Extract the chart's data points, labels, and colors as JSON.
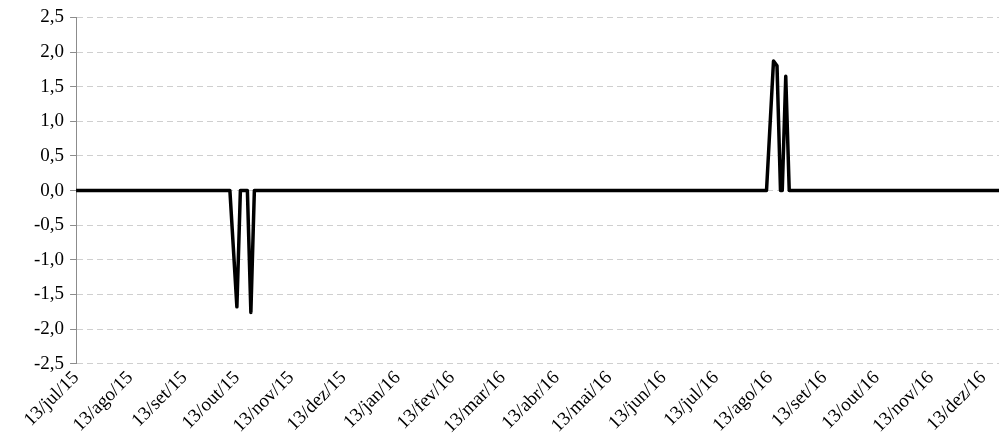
{
  "chart_data": {
    "type": "line",
    "x": [
      "2015-07-13",
      "2015-10-09",
      "2015-10-13",
      "2015-10-15",
      "2015-10-19",
      "2015-10-21",
      "2015-10-23",
      "2016-08-11",
      "2016-08-15",
      "2016-08-17",
      "2016-08-19",
      "2016-08-20",
      "2016-08-22",
      "2016-08-24",
      "2016-12-22"
    ],
    "series": [
      {
        "color": "#000000",
        "values": [
          0,
          0,
          -1.68,
          0,
          0,
          -1.76,
          0,
          0,
          1.87,
          1.8,
          0,
          0,
          1.65,
          0,
          0
        ]
      }
    ],
    "xlim": [
      "2015-07-13",
      "2016-12-22"
    ],
    "xticks": [
      {
        "value": "2015-07-13",
        "label": "13/jul/15"
      },
      {
        "value": "2015-08-13",
        "label": "13/ago/15"
      },
      {
        "value": "2015-09-13",
        "label": "13/set/15"
      },
      {
        "value": "2015-10-13",
        "label": "13/out/15"
      },
      {
        "value": "2015-11-13",
        "label": "13/nov/15"
      },
      {
        "value": "2015-12-13",
        "label": "13/dez/15"
      },
      {
        "value": "2016-01-13",
        "label": "13/jan/16"
      },
      {
        "value": "2016-02-13",
        "label": "13/fev/16"
      },
      {
        "value": "2016-03-13",
        "label": "13/mar/16"
      },
      {
        "value": "2016-04-13",
        "label": "13/abr/16"
      },
      {
        "value": "2016-05-13",
        "label": "13/mai/16"
      },
      {
        "value": "2016-06-13",
        "label": "13/jun/16"
      },
      {
        "value": "2016-07-13",
        "label": "13/jul/16"
      },
      {
        "value": "2016-08-13",
        "label": "13/ago/16"
      },
      {
        "value": "2016-09-13",
        "label": "13/set/16"
      },
      {
        "value": "2016-10-13",
        "label": "13/out/16"
      },
      {
        "value": "2016-11-13",
        "label": "13/nov/16"
      },
      {
        "value": "2016-12-13",
        "label": "13/dez/16"
      }
    ],
    "ylim": [
      -2.5,
      2.5
    ],
    "yticks": [
      {
        "value": -2.5,
        "label": "-2,5"
      },
      {
        "value": -2,
        "label": "-2,0"
      },
      {
        "value": -1.5,
        "label": "-1,5"
      },
      {
        "value": -1,
        "label": "-1,0"
      },
      {
        "value": -0.5,
        "label": "-0,5"
      },
      {
        "value": 0,
        "label": "0,0"
      },
      {
        "value": 0.5,
        "label": "0,5"
      },
      {
        "value": 1,
        "label": "1,0"
      },
      {
        "value": 1.5,
        "label": "1,5"
      },
      {
        "value": 2,
        "label": "2,0"
      },
      {
        "value": 2.5,
        "label": "2,5"
      }
    ],
    "grid": "y",
    "legend": false,
    "marker": "none",
    "line_style": "solid"
  }
}
